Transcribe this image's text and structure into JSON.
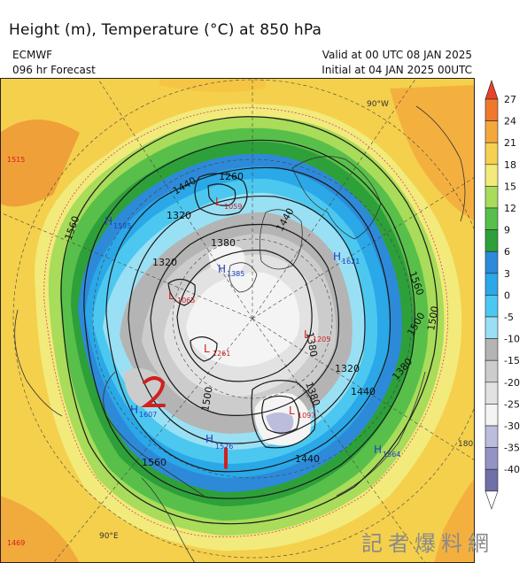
{
  "header": {
    "title": "Height (m), Temperature (°C) at 850 hPa",
    "model": "ECMWF",
    "forecast": "096 hr Forecast",
    "valid": "Valid at 00 UTC 08 JAN 2025",
    "initial": "Initial at 04 JAN 2025 00UTC"
  },
  "colorbar": {
    "labels": [
      "27",
      "24",
      "21",
      "18",
      "15",
      "12",
      "9",
      "6",
      "3",
      "0",
      "-5",
      "-10",
      "-15",
      "-20",
      "-25",
      "-30",
      "-35",
      "-40"
    ],
    "colors": [
      "#e8402a",
      "#f0782e",
      "#f4a83c",
      "#f6d050",
      "#f2ea7a",
      "#a8dc5a",
      "#58c04a",
      "#2ea03a",
      "#2d8ad8",
      "#2aa8e8",
      "#4cc8f0",
      "#9ae0f4",
      "#b4b4b4",
      "#cccccc",
      "#e2e2e2",
      "#f4f4f4",
      "#bcbcdc",
      "#9494c4",
      "#7070a8",
      "#ffffff"
    ]
  },
  "map": {
    "contour_labels": [
      "1560",
      "1440",
      "1320",
      "1260",
      "1380",
      "1440",
      "1560",
      "1500",
      "1380",
      "1320",
      "1440",
      "1440",
      "1380",
      "1500",
      "1560",
      "1380",
      "1500",
      "1320"
    ],
    "highs": [
      {
        "letter": "H",
        "value": "1595"
      },
      {
        "letter": "H",
        "value": "1385"
      },
      {
        "letter": "H",
        "value": "1621"
      },
      {
        "letter": "H",
        "value": "1607"
      },
      {
        "letter": "H",
        "value": "1526"
      },
      {
        "letter": "H",
        "value": "1564"
      }
    ],
    "lows": [
      {
        "letter": "L",
        "value": "1059"
      },
      {
        "letter": "L",
        "value": "1065"
      },
      {
        "letter": "L",
        "value": "1261"
      },
      {
        "letter": "L",
        "value": "1205"
      },
      {
        "letter": "L",
        "value": "1097"
      }
    ],
    "edge_values": [
      "1515",
      "1469"
    ],
    "meridians": [
      "90°W",
      "180",
      "90°E"
    ]
  },
  "watermark": "記者爆料網"
}
